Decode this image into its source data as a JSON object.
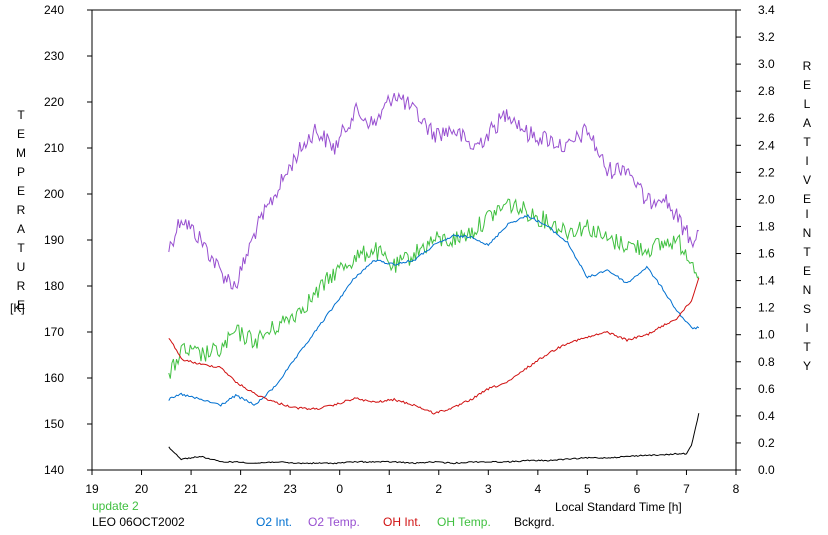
{
  "chart_data": {
    "type": "line",
    "title": "",
    "left_axis": {
      "label_letters": [
        "T",
        "E",
        "M",
        "P",
        "E",
        "R",
        "A",
        "T",
        "U",
        "R",
        "E"
      ],
      "unit": "[K]",
      "ylim": [
        140,
        240
      ],
      "ticks": [
        "140",
        "150",
        "160",
        "170",
        "180",
        "190",
        "200",
        "210",
        "220",
        "230",
        "240"
      ]
    },
    "right_axis": {
      "label_word1": [
        "R",
        "E",
        "L",
        "A",
        "T",
        "I",
        "V",
        "E"
      ],
      "label_word2": [
        "I",
        "N",
        "T",
        "E",
        "N",
        "S",
        "I",
        "T",
        "Y"
      ],
      "ylim": [
        0.0,
        3.4
      ],
      "ticks": [
        "0.0",
        "0.2",
        "0.4",
        "0.6",
        "0.8",
        "1.0",
        "1.2",
        "1.4",
        "1.6",
        "1.8",
        "2.0",
        "2.2",
        "2.4",
        "2.6",
        "2.8",
        "3.0",
        "3.2",
        "3.4"
      ]
    },
    "x_axis": {
      "label": "Local Standard Time [h]",
      "ticks": [
        "19",
        "20",
        "21",
        "22",
        "23",
        "0",
        "1",
        "2",
        "3",
        "4",
        "5",
        "6",
        "7",
        "8"
      ],
      "range_hours_since_19": [
        0,
        13
      ]
    },
    "grid": false,
    "annotations": {
      "update": "update 2",
      "station": "LEO 06OCT2002"
    },
    "series": [
      {
        "name": "O2 Int.",
        "axis": "right",
        "color": "#0070d0",
        "x": [
          1.55,
          1.8,
          2.2,
          2.6,
          2.9,
          3.3,
          3.7,
          4.1,
          4.5,
          4.9,
          5.3,
          5.7,
          6.1,
          6.5,
          6.9,
          7.3,
          7.7,
          8.0,
          8.4,
          8.8,
          9.2,
          9.6,
          10.0,
          10.4,
          10.8,
          11.2,
          11.5,
          11.8,
          12.1,
          12.25
        ],
        "y": [
          0.52,
          0.56,
          0.52,
          0.48,
          0.55,
          0.48,
          0.62,
          0.82,
          1.02,
          1.22,
          1.42,
          1.55,
          1.52,
          1.55,
          1.66,
          1.73,
          1.72,
          1.66,
          1.82,
          1.88,
          1.8,
          1.68,
          1.42,
          1.48,
          1.38,
          1.5,
          1.35,
          1.18,
          1.05,
          1.05
        ]
      },
      {
        "name": "O2 Temp.",
        "axis": "left",
        "color": "#9850d0",
        "x": [
          1.55,
          1.8,
          2.2,
          2.6,
          2.9,
          3.3,
          3.7,
          4.1,
          4.5,
          4.9,
          5.3,
          5.7,
          6.1,
          6.5,
          6.9,
          7.3,
          7.7,
          8.0,
          8.4,
          8.8,
          9.2,
          9.6,
          10.0,
          10.4,
          10.8,
          11.2,
          11.5,
          11.8,
          12.1,
          12.25
        ],
        "y": [
          188,
          195,
          190,
          183,
          180,
          192,
          200,
          208,
          214,
          210,
          218,
          215,
          222,
          218,
          213,
          214,
          210,
          213,
          218,
          213,
          212,
          210,
          214,
          205,
          206,
          198,
          200,
          195,
          190,
          192
        ]
      },
      {
        "name": "OH Int.",
        "axis": "right",
        "color": "#d01010",
        "x": [
          1.55,
          1.8,
          2.2,
          2.6,
          2.9,
          3.3,
          3.7,
          4.1,
          4.5,
          4.9,
          5.3,
          5.7,
          6.1,
          6.5,
          6.9,
          7.3,
          7.7,
          8.0,
          8.4,
          8.8,
          9.2,
          9.6,
          10.0,
          10.4,
          10.8,
          11.2,
          11.5,
          11.8,
          12.1,
          12.25
        ],
        "y": [
          0.98,
          0.82,
          0.78,
          0.76,
          0.65,
          0.56,
          0.5,
          0.46,
          0.45,
          0.48,
          0.53,
          0.5,
          0.52,
          0.48,
          0.42,
          0.46,
          0.53,
          0.6,
          0.65,
          0.76,
          0.86,
          0.94,
          0.98,
          1.02,
          0.96,
          1.0,
          1.06,
          1.12,
          1.25,
          1.42
        ]
      },
      {
        "name": "OH Temp.",
        "axis": "left",
        "color": "#40c040",
        "x": [
          1.55,
          1.8,
          2.2,
          2.6,
          2.9,
          3.3,
          3.7,
          4.1,
          4.5,
          4.9,
          5.3,
          5.7,
          6.1,
          6.5,
          6.9,
          7.3,
          7.7,
          8.0,
          8.4,
          8.8,
          9.2,
          9.6,
          10.0,
          10.4,
          10.8,
          11.2,
          11.5,
          11.8,
          12.1,
          12.25
        ],
        "y": [
          160,
          166,
          165,
          166,
          170,
          168,
          171,
          174,
          178,
          183,
          186,
          188,
          184,
          187,
          190,
          190,
          192,
          195,
          198,
          196,
          194,
          192,
          193,
          190,
          189,
          188,
          189,
          190,
          186,
          182
        ]
      },
      {
        "name": "Bckgrd.",
        "axis": "right",
        "color": "#000000",
        "x": [
          1.55,
          1.8,
          2.2,
          2.6,
          2.9,
          3.3,
          3.7,
          4.1,
          4.5,
          4.9,
          5.3,
          5.7,
          6.1,
          6.5,
          6.9,
          7.3,
          7.7,
          8.0,
          8.4,
          8.8,
          9.2,
          9.6,
          10.0,
          10.4,
          10.8,
          11.2,
          11.5,
          11.8,
          12.0,
          12.1,
          12.25
        ],
        "y": [
          0.17,
          0.08,
          0.1,
          0.06,
          0.06,
          0.05,
          0.06,
          0.05,
          0.05,
          0.05,
          0.06,
          0.06,
          0.06,
          0.05,
          0.06,
          0.05,
          0.06,
          0.06,
          0.06,
          0.07,
          0.07,
          0.08,
          0.09,
          0.09,
          0.1,
          0.11,
          0.11,
          0.12,
          0.12,
          0.18,
          0.42
        ]
      }
    ]
  }
}
